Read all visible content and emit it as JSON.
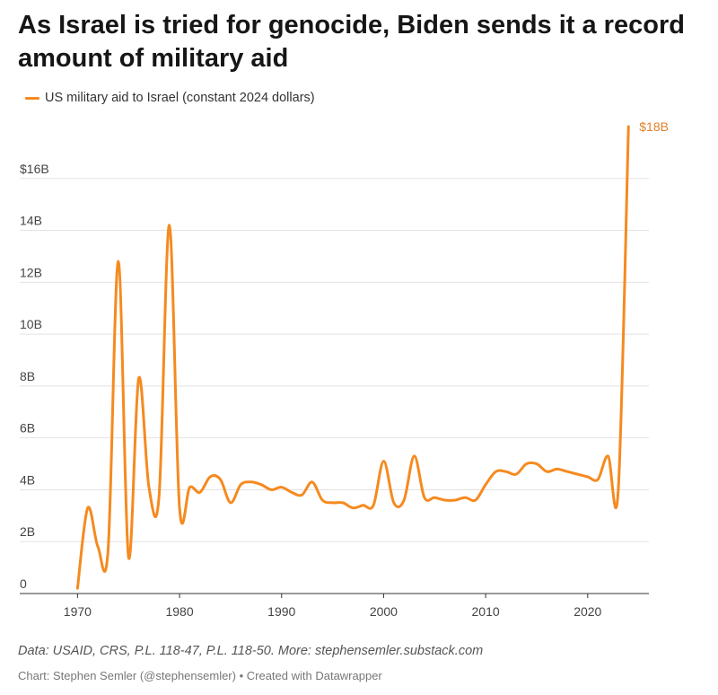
{
  "chart_data": {
    "type": "line",
    "title": "As Israel is tried for genocide, Biden sends it a record amount of military aid",
    "series": [
      {
        "name": "US military aid to Israel (constant 2024 dollars)",
        "color": "#f58a1f",
        "x": [
          1970,
          1971,
          1972,
          1973,
          1974,
          1975,
          1976,
          1977,
          1978,
          1979,
          1980,
          1981,
          1982,
          1983,
          1984,
          1985,
          1986,
          1987,
          1988,
          1989,
          1990,
          1991,
          1992,
          1993,
          1994,
          1995,
          1996,
          1997,
          1998,
          1999,
          2000,
          2001,
          2002,
          2003,
          2004,
          2005,
          2006,
          2007,
          2008,
          2009,
          2010,
          2011,
          2012,
          2013,
          2014,
          2015,
          2016,
          2017,
          2018,
          2019,
          2020,
          2021,
          2022,
          2023,
          2024
        ],
        "y": [
          0.2,
          3.3,
          1.8,
          1.7,
          12.8,
          1.4,
          8.3,
          4.1,
          3.8,
          14.2,
          3.3,
          4.1,
          3.9,
          4.5,
          4.4,
          3.5,
          4.2,
          4.3,
          4.2,
          4.0,
          4.1,
          3.9,
          3.8,
          4.3,
          3.6,
          3.5,
          3.5,
          3.3,
          3.4,
          3.4,
          5.1,
          3.5,
          3.6,
          5.3,
          3.7,
          3.7,
          3.6,
          3.6,
          3.7,
          3.6,
          4.2,
          4.7,
          4.7,
          4.6,
          5.0,
          5.0,
          4.7,
          4.8,
          4.7,
          4.6,
          4.5,
          4.4,
          5.3,
          4.0,
          18.0
        ]
      }
    ],
    "end_label": "$18B",
    "xlim": [
      1969,
      2026
    ],
    "ylim": [
      0,
      18
    ],
    "xticks": [
      1970,
      1980,
      1990,
      2000,
      2010,
      2020
    ],
    "yticks": [
      0,
      2,
      4,
      6,
      8,
      10,
      12,
      14,
      16
    ],
    "ytick_labels": [
      "0",
      "2B",
      "4B",
      "6B",
      "8B",
      "10B",
      "12B",
      "14B",
      "$16B"
    ],
    "grid": true,
    "legend_position": "top-left"
  },
  "footer": {
    "source": "Data: USAID, CRS, P.L. 118-47, P.L. 118-50. More: stephensemler.substack.com",
    "credit": "Chart: Stephen Semler (@stephensemler) • Created with Datawrapper"
  }
}
